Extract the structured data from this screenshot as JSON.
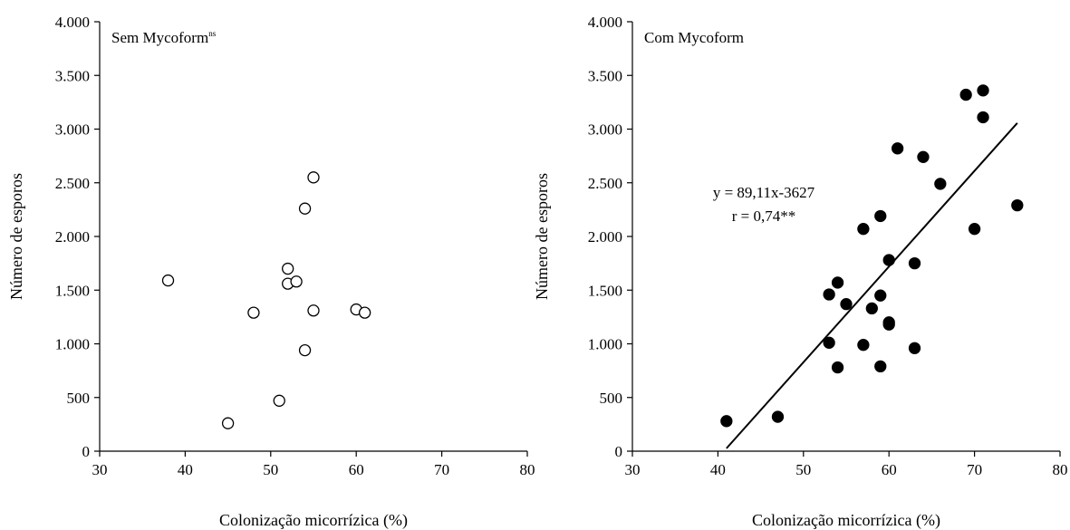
{
  "chart_data": [
    {
      "type": "scatter",
      "title": "Sem Mycoform",
      "title_superscript": "ns",
      "xlabel": "Colonização micorrízica (%)",
      "ylabel": "Número de esporos",
      "xlim": [
        30,
        80
      ],
      "ylim": [
        0,
        4000
      ],
      "x_ticks": [
        30,
        40,
        50,
        60,
        70,
        80
      ],
      "x_tick_labels": [
        "30",
        "40",
        "50",
        "60",
        "70",
        "80"
      ],
      "y_ticks": [
        0,
        500,
        1000,
        1500,
        2000,
        2500,
        3000,
        3500,
        4000
      ],
      "y_tick_labels": [
        "0",
        "500",
        "1.000",
        "1.500",
        "2.000",
        "2.500",
        "3.000",
        "3.500",
        "4.000"
      ],
      "marker": "open-circle",
      "points": [
        {
          "x": 38,
          "y": 1590
        },
        {
          "x": 45,
          "y": 260
        },
        {
          "x": 48,
          "y": 1290
        },
        {
          "x": 51,
          "y": 470
        },
        {
          "x": 52,
          "y": 1700
        },
        {
          "x": 52,
          "y": 1560
        },
        {
          "x": 53,
          "y": 1580
        },
        {
          "x": 54,
          "y": 2260
        },
        {
          "x": 54,
          "y": 940
        },
        {
          "x": 55,
          "y": 2550
        },
        {
          "x": 55,
          "y": 1310
        },
        {
          "x": 60,
          "y": 1320
        },
        {
          "x": 61,
          "y": 1290
        }
      ]
    },
    {
      "type": "scatter",
      "title": "Com Mycoform",
      "xlabel": "Colonização micorrízica (%)",
      "ylabel": "Número de esporos",
      "xlim": [
        30,
        80
      ],
      "ylim": [
        0,
        4000
      ],
      "x_ticks": [
        30,
        40,
        50,
        60,
        70,
        80
      ],
      "x_tick_labels": [
        "30",
        "40",
        "50",
        "60",
        "70",
        "80"
      ],
      "y_ticks": [
        0,
        500,
        1000,
        1500,
        2000,
        2500,
        3000,
        3500,
        4000
      ],
      "y_tick_labels": [
        "0",
        "500",
        "1.000",
        "1.500",
        "2.000",
        "2.500",
        "3.000",
        "3.500",
        "4.000"
      ],
      "marker": "filled-circle",
      "points": [
        {
          "x": 41,
          "y": 280
        },
        {
          "x": 47,
          "y": 320
        },
        {
          "x": 53,
          "y": 1010
        },
        {
          "x": 53,
          "y": 1460
        },
        {
          "x": 54,
          "y": 780
        },
        {
          "x": 54,
          "y": 1570
        },
        {
          "x": 55,
          "y": 1370
        },
        {
          "x": 57,
          "y": 2070
        },
        {
          "x": 57,
          "y": 990
        },
        {
          "x": 58,
          "y": 1330
        },
        {
          "x": 59,
          "y": 2190
        },
        {
          "x": 59,
          "y": 1450
        },
        {
          "x": 59,
          "y": 790
        },
        {
          "x": 60,
          "y": 1780
        },
        {
          "x": 60,
          "y": 1200
        },
        {
          "x": 60,
          "y": 1180
        },
        {
          "x": 61,
          "y": 2820
        },
        {
          "x": 63,
          "y": 1750
        },
        {
          "x": 63,
          "y": 960
        },
        {
          "x": 64,
          "y": 2740
        },
        {
          "x": 66,
          "y": 2490
        },
        {
          "x": 69,
          "y": 3320
        },
        {
          "x": 70,
          "y": 2070
        },
        {
          "x": 71,
          "y": 3360
        },
        {
          "x": 71,
          "y": 3110
        },
        {
          "x": 75,
          "y": 2290
        }
      ],
      "regression": {
        "slope": 89.11,
        "intercept": -3627,
        "x_range": [
          41,
          75
        ]
      },
      "annotations": [
        "y = 89,11x-3627",
        "r = 0,74**"
      ]
    }
  ]
}
